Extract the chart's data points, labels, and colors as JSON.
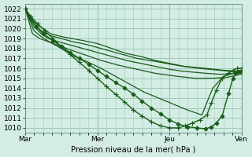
{
  "bg_color": "#d4ede4",
  "plot_bg_color": "#d4ede4",
  "grid_color": "#a0c8b8",
  "line_color": "#1a5c1a",
  "marker_color": "#1a5c1a",
  "xlabel_text": "Pression niveau de la mer( hPa )",
  "xtick_labels": [
    "Mar",
    "Mer",
    "Jeu",
    "Ven"
  ],
  "xtick_positions": [
    0,
    1,
    2,
    3
  ],
  "ylim": [
    1009.5,
    1022.5
  ],
  "xlim": [
    0,
    3.0
  ],
  "yticks": [
    1010,
    1011,
    1012,
    1013,
    1014,
    1015,
    1016,
    1017,
    1018,
    1019,
    1020,
    1021,
    1022
  ],
  "series": [
    {
      "x": [
        0.0,
        0.08,
        0.15,
        0.25,
        0.35,
        0.5,
        0.65,
        0.8,
        1.0,
        1.2,
        1.4,
        1.6,
        1.8,
        2.0,
        2.2,
        2.5,
        2.75,
        3.0
      ],
      "y": [
        1022,
        1021,
        1020.5,
        1020,
        1019.5,
        1019.2,
        1019,
        1018.8,
        1018.5,
        1018.0,
        1017.5,
        1017.2,
        1016.8,
        1016.5,
        1016.2,
        1016.0,
        1015.8,
        1015.7
      ],
      "marker": null,
      "linewidth": 0.9
    },
    {
      "x": [
        0.0,
        0.12,
        0.22,
        0.35,
        0.5,
        0.65,
        0.85,
        1.05,
        1.3,
        1.55,
        1.8,
        2.1,
        2.4,
        2.7,
        3.0
      ],
      "y": [
        1022,
        1020.5,
        1019.8,
        1019.3,
        1019.0,
        1018.7,
        1018.4,
        1018.0,
        1017.5,
        1017.0,
        1016.7,
        1016.3,
        1016.0,
        1015.8,
        1015.6
      ],
      "marker": null,
      "linewidth": 0.9
    },
    {
      "x": [
        0.0,
        0.12,
        0.22,
        0.32,
        0.45,
        0.6,
        0.8,
        1.0,
        1.2,
        1.4,
        1.6,
        1.8,
        2.0,
        2.2,
        2.5,
        2.7,
        3.0
      ],
      "y": [
        1022,
        1020.2,
        1019.5,
        1019.0,
        1018.7,
        1018.4,
        1018.0,
        1017.6,
        1017.2,
        1016.8,
        1016.5,
        1016.2,
        1015.9,
        1015.7,
        1015.5,
        1015.4,
        1015.5
      ],
      "marker": null,
      "linewidth": 0.9
    },
    {
      "x": [
        0.0,
        0.1,
        0.2,
        0.35,
        0.5,
        0.65,
        0.85,
        1.05,
        1.3,
        1.55,
        1.8,
        2.1,
        2.35,
        2.6,
        2.8,
        3.0
      ],
      "y": [
        1022,
        1019.5,
        1019.0,
        1018.6,
        1018.2,
        1017.8,
        1017.3,
        1016.8,
        1016.3,
        1015.9,
        1015.5,
        1015.2,
        1015.0,
        1015.0,
        1015.1,
        1015.4
      ],
      "marker": null,
      "linewidth": 0.9
    },
    {
      "x": [
        0.0,
        0.12,
        0.22,
        0.35,
        0.5,
        0.65,
        0.85,
        1.05,
        1.25,
        1.45,
        1.65,
        1.85,
        2.05,
        2.25,
        2.45,
        2.6,
        2.75,
        2.88,
        3.0
      ],
      "y": [
        1022,
        1019.8,
        1019.2,
        1018.6,
        1018.0,
        1017.3,
        1016.7,
        1016.0,
        1015.2,
        1014.4,
        1013.6,
        1013.0,
        1012.4,
        1011.8,
        1011.3,
        1014.0,
        1015.2,
        1015.5,
        1015.7
      ],
      "marker": null,
      "linewidth": 0.9
    },
    {
      "x": [
        0.0,
        0.08,
        0.15,
        0.25,
        0.38,
        0.5,
        0.62,
        0.75,
        0.88,
        1.0,
        1.12,
        1.25,
        1.38,
        1.5,
        1.62,
        1.75,
        1.88,
        2.0,
        2.12,
        2.25,
        2.38,
        2.5,
        2.58,
        2.65,
        2.73,
        2.82,
        2.88,
        2.92,
        2.96,
        3.0
      ],
      "y": [
        1022,
        1021,
        1020.2,
        1019.5,
        1018.8,
        1018.2,
        1017.6,
        1017.0,
        1016.4,
        1015.8,
        1015.2,
        1014.6,
        1014.0,
        1013.4,
        1012.7,
        1012.0,
        1011.4,
        1010.8,
        1010.4,
        1010.1,
        1010.0,
        1009.9,
        1010.1,
        1010.5,
        1011.2,
        1013.5,
        1015.0,
        1015.5,
        1015.7,
        1015.8
      ],
      "marker": "D",
      "markersize": 2.5,
      "linewidth": 1.0
    },
    {
      "x": [
        0.0,
        0.08,
        0.17,
        0.27,
        0.38,
        0.5,
        0.62,
        0.75,
        0.88,
        1.0,
        1.12,
        1.25,
        1.38,
        1.5,
        1.62,
        1.75,
        1.88,
        2.0,
        2.12,
        2.22,
        2.32,
        2.42,
        2.52,
        2.58,
        2.65,
        2.73,
        2.82,
        2.88,
        2.94,
        3.0
      ],
      "y": [
        1022,
        1021.2,
        1020.5,
        1019.8,
        1019.0,
        1018.2,
        1017.4,
        1016.6,
        1015.8,
        1015.0,
        1014.2,
        1013.4,
        1012.6,
        1011.8,
        1011.2,
        1010.6,
        1010.2,
        1010.0,
        1010.0,
        1010.2,
        1010.5,
        1010.8,
        1011.3,
        1012.5,
        1013.8,
        1015.0,
        1015.5,
        1015.8,
        1016.0,
        1016.0
      ],
      "marker": "+",
      "markersize": 4,
      "linewidth": 1.0
    }
  ]
}
